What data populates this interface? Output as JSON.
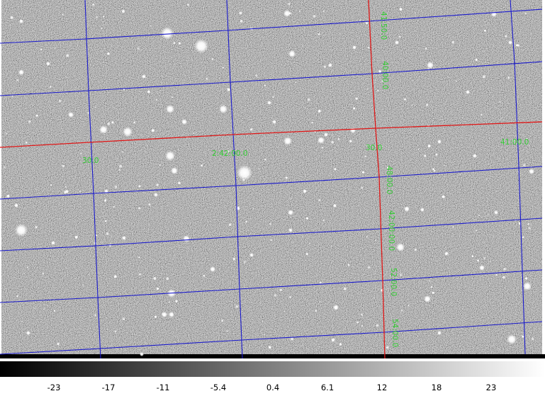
{
  "grid": {
    "line_color": "#1a1acc",
    "axis_color": "#e01818",
    "label_color": "#33cc33",
    "labels": {
      "dec_41_50": "41:50:0",
      "dec_40_00": "40:00.0",
      "ra_30_left": "30.0",
      "ra_2_42_00": "2:42:00.0",
      "ra_30_mid": "30.0",
      "ra_41_00": "41:00.0",
      "dec_48_00": "48:00.0",
      "dec_42_00_00": "42:00:00.0",
      "dec_52_00": "52:00.0",
      "dec_54_00": "54:00.0"
    }
  },
  "colorbar": {
    "ticks": [
      "-23",
      "-17",
      "-11",
      "-5.4",
      "0.4",
      "6.1",
      "12",
      "18",
      "23"
    ]
  }
}
